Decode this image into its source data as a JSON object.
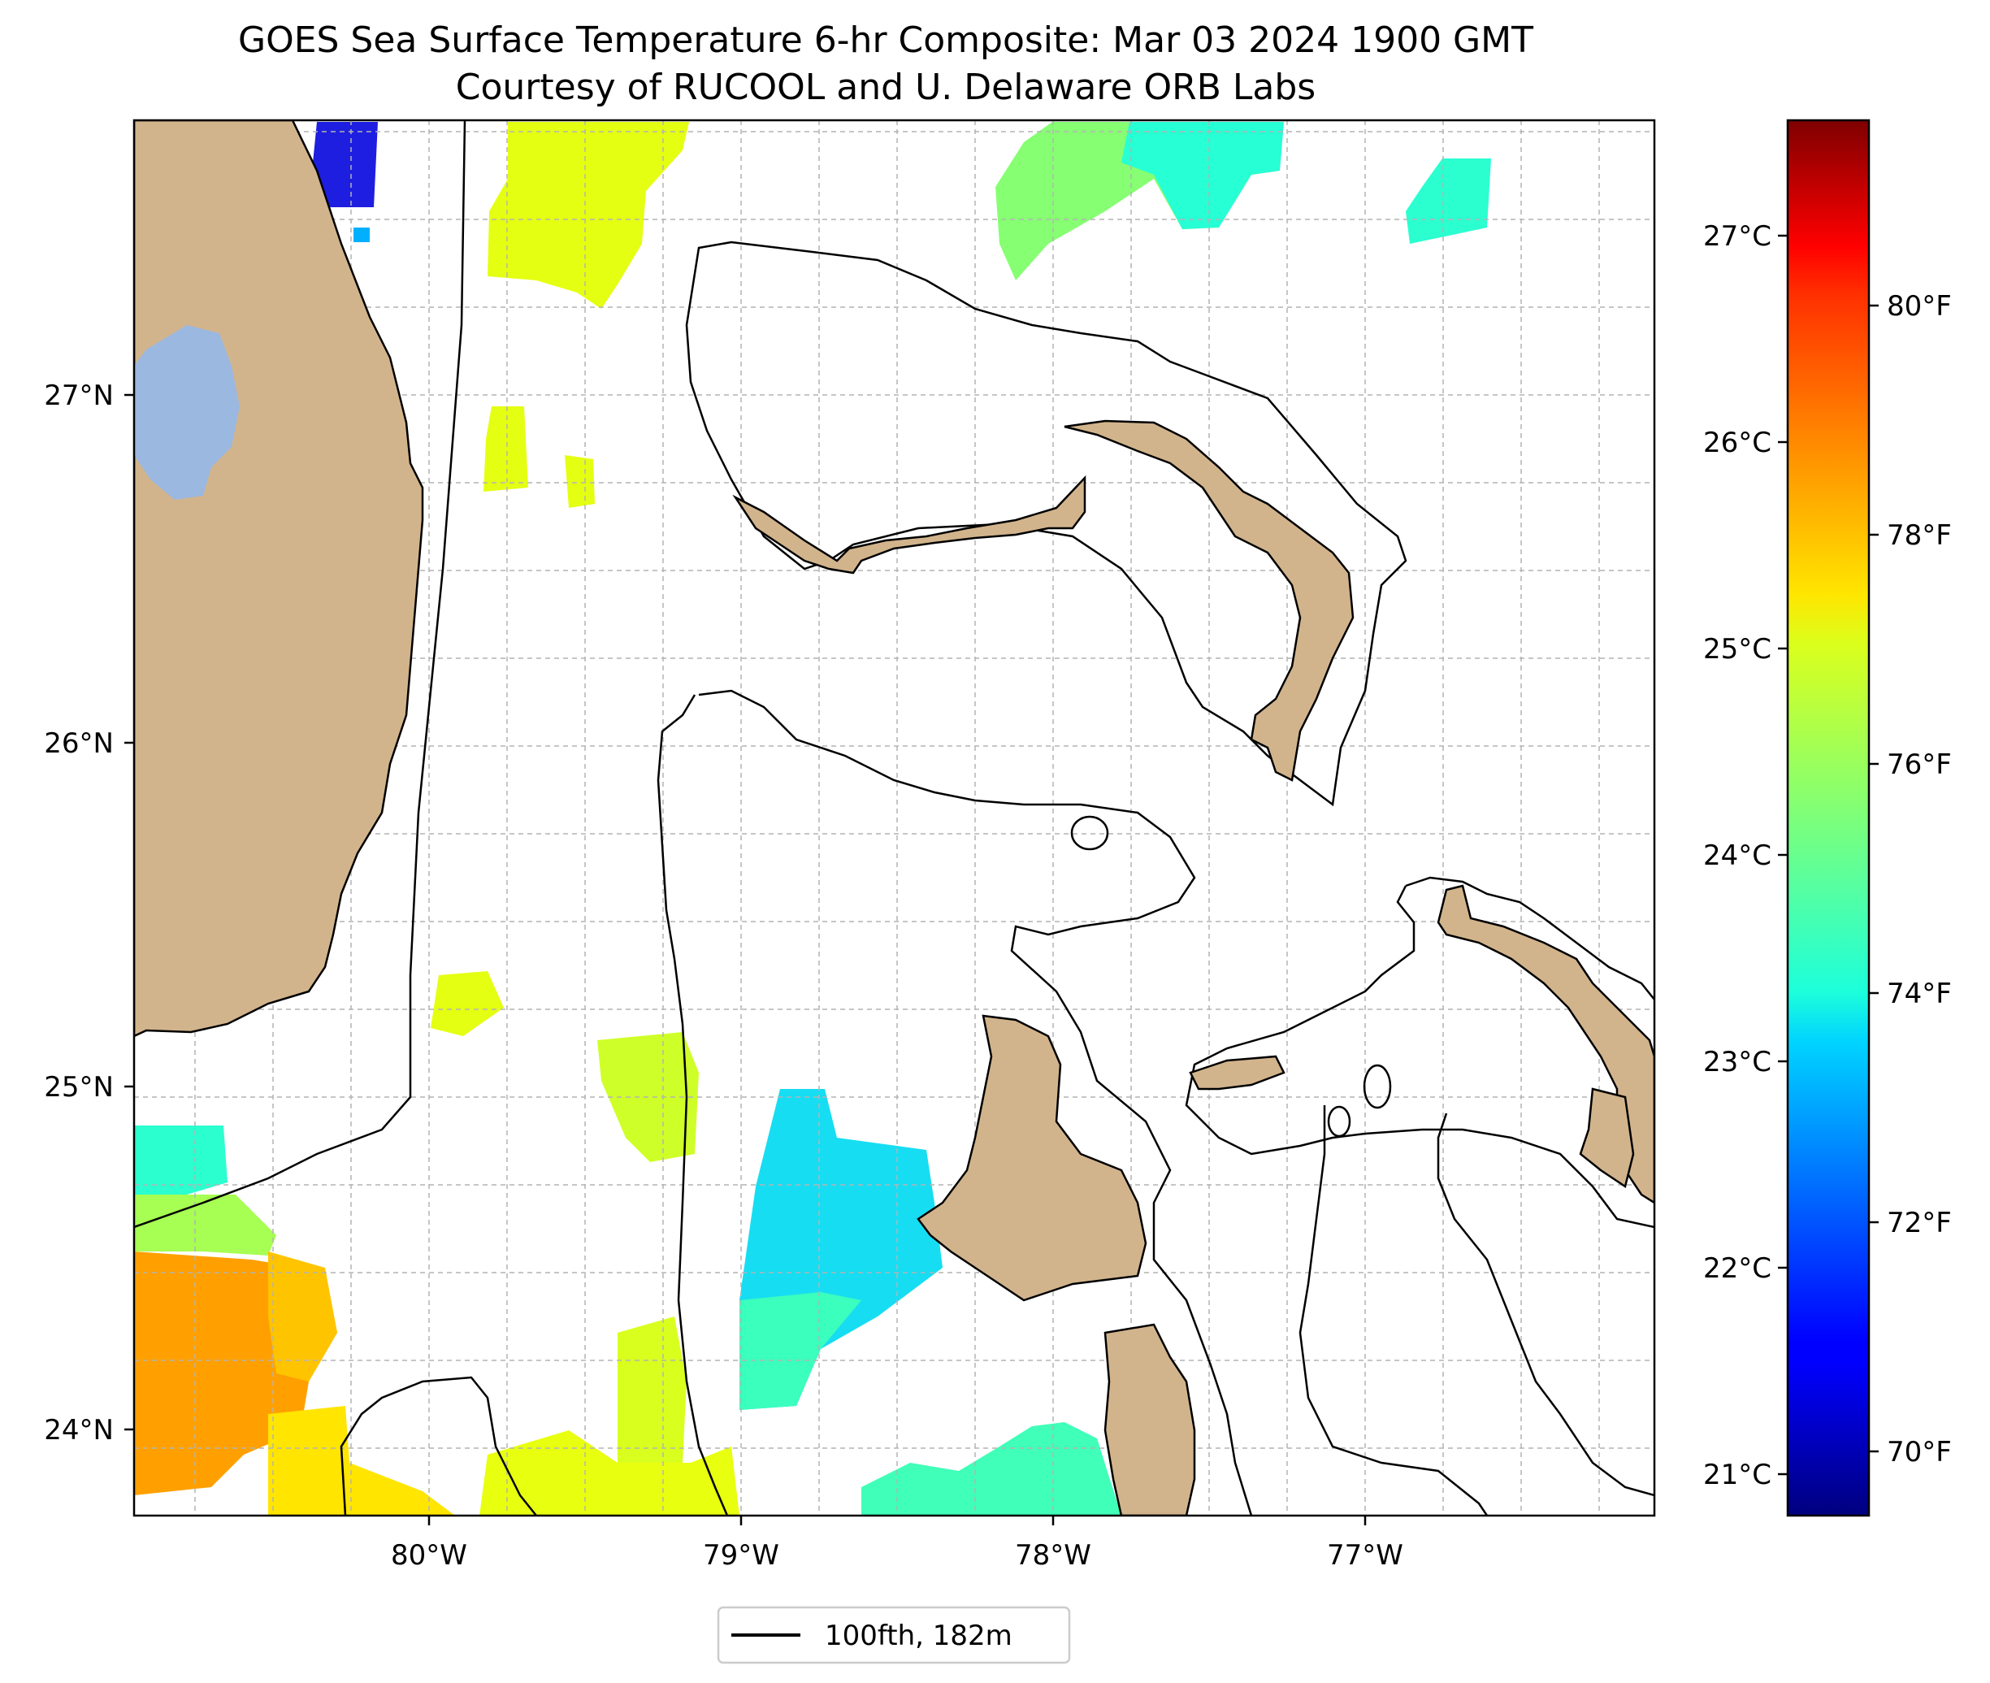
{
  "title": {
    "line1": "GOES Sea Surface Temperature 6-hr Composite: Mar 03 2024 1900 GMT",
    "line2": "Courtesy of RUCOOL and U. Delaware ORB Labs"
  },
  "map": {
    "lon_ticks": [
      "80°W",
      "79°W",
      "78°W",
      "77°W"
    ],
    "lat_ticks": [
      "27°N",
      "26°N",
      "25°N",
      "24°N"
    ],
    "land_color": "#d2b48c",
    "lake_color": "#9bb8e0",
    "grid": "dashed"
  },
  "colorbar": {
    "colormap": "jet",
    "celsius_ticks": [
      "27°C",
      "26°C",
      "25°C",
      "24°C",
      "23°C",
      "22°C",
      "21°C"
    ],
    "fahrenheit_ticks": [
      "80°F",
      "78°F",
      "76°F",
      "74°F",
      "72°F",
      "70°F"
    ]
  },
  "legend": {
    "label": "100fth, 182m"
  },
  "sst_patches": [
    {
      "region": "north-central",
      "temp_c": 25.0
    },
    {
      "region": "north-east",
      "temp_c": 23.8
    },
    {
      "region": "northwest-coast",
      "temp_c": 21.5
    },
    {
      "region": "central-south",
      "temp_c": 23.2
    },
    {
      "region": "southwest",
      "temp_c": 26.0
    },
    {
      "region": "south",
      "temp_c": 24.9
    }
  ]
}
